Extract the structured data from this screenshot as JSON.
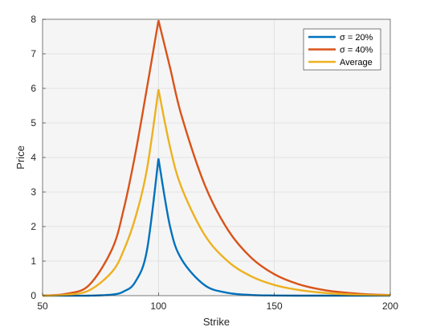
{
  "chart_data": {
    "type": "line",
    "xlabel": "Strike",
    "ylabel": "Price",
    "xlim": [
      50,
      200
    ],
    "ylim": [
      0,
      8
    ],
    "x_ticks": [
      50,
      100,
      150,
      200
    ],
    "y_ticks": [
      0,
      1,
      2,
      3,
      4,
      5,
      6,
      7,
      8
    ],
    "grid": true,
    "legend_position": "top-right",
    "x": [
      50,
      60,
      70,
      80,
      85,
      90,
      95,
      100,
      105,
      110,
      120,
      130,
      140,
      150,
      160,
      170,
      180,
      190,
      200
    ],
    "series": [
      {
        "name": "σ = 20%",
        "color": "#0072BD",
        "values": [
          0.0,
          0.0,
          0.0,
          0.03,
          0.12,
          0.4,
          1.3,
          3.97,
          2.0,
          1.05,
          0.3,
          0.08,
          0.02,
          0.005,
          0.0,
          0.0,
          0.0,
          0.0,
          0.0
        ]
      },
      {
        "name": "σ = 40%",
        "color": "#D95319",
        "values": [
          0.0,
          0.05,
          0.3,
          1.35,
          2.5,
          4.1,
          6.0,
          7.97,
          6.6,
          5.2,
          3.2,
          1.9,
          1.1,
          0.62,
          0.34,
          0.18,
          0.09,
          0.04,
          0.02
        ]
      },
      {
        "name": "Average",
        "color": "#EDB120",
        "values": [
          0.0,
          0.025,
          0.15,
          0.69,
          1.31,
          2.25,
          3.65,
          5.97,
          4.3,
          3.12,
          1.75,
          0.99,
          0.56,
          0.31,
          0.17,
          0.09,
          0.045,
          0.02,
          0.01
        ]
      }
    ]
  }
}
